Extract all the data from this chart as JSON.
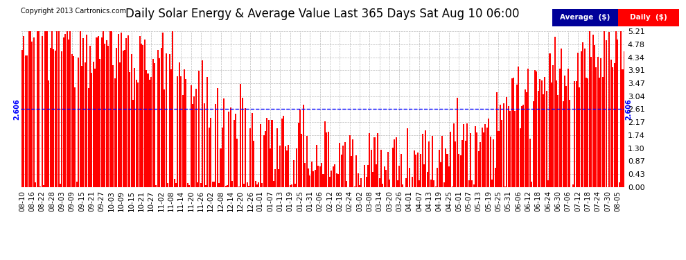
{
  "title": "Daily Solar Energy & Average Value Last 365 Days Sat Aug 10 06:00",
  "bar_color": "#FF0000",
  "average_color": "#0000FF",
  "average_value": 2.606,
  "ylim": [
    0.0,
    5.21
  ],
  "yticks": [
    0.0,
    0.43,
    0.87,
    1.3,
    1.74,
    2.17,
    2.61,
    3.04,
    3.47,
    3.91,
    4.34,
    4.78,
    5.21
  ],
  "background_color": "#FFFFFF",
  "grid_color": "#BBBBBB",
  "copyright_text": "Copyright 2013 Cartronics.com",
  "legend_average_label": "Average  ($)",
  "legend_daily_label": "Daily  ($)",
  "legend_average_bg": "#000099",
  "legend_daily_bg": "#FF0000",
  "title_fontsize": 12,
  "tick_fontsize": 8,
  "avg_label": "2.606",
  "num_days": 365,
  "x_labels": [
    "08-10",
    "08-16",
    "08-22",
    "08-28",
    "09-03",
    "09-09",
    "09-15",
    "09-21",
    "09-27",
    "10-03",
    "10-09",
    "10-15",
    "10-21",
    "10-27",
    "11-02",
    "11-08",
    "11-14",
    "11-20",
    "11-26",
    "12-02",
    "12-08",
    "12-14",
    "12-20",
    "12-26",
    "01-01",
    "01-07",
    "01-13",
    "01-19",
    "01-25",
    "01-31",
    "02-06",
    "02-12",
    "02-18",
    "02-24",
    "03-02",
    "03-08",
    "03-14",
    "03-20",
    "03-26",
    "04-01",
    "04-07",
    "04-13",
    "04-19",
    "04-25",
    "05-01",
    "05-07",
    "05-13",
    "05-19",
    "05-25",
    "05-31",
    "06-06",
    "06-12",
    "06-18",
    "06-24",
    "06-30",
    "07-06",
    "07-12",
    "07-18",
    "07-24",
    "07-30",
    "08-05"
  ]
}
